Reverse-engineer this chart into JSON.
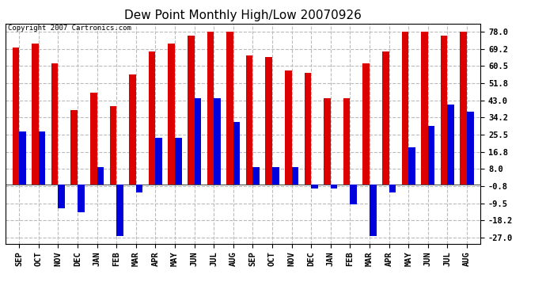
{
  "title": "Dew Point Monthly High/Low 20070926",
  "copyright": "Copyright 2007 Cartronics.com",
  "months": [
    "SEP",
    "OCT",
    "NOV",
    "DEC",
    "JAN",
    "FEB",
    "MAR",
    "APR",
    "MAY",
    "JUN",
    "JUL",
    "AUG",
    "SEP",
    "OCT",
    "NOV",
    "DEC",
    "JAN",
    "FEB",
    "MAR",
    "APR",
    "MAY",
    "JUN",
    "JUL",
    "AUG"
  ],
  "highs": [
    70,
    72,
    62,
    38,
    47,
    40,
    56,
    68,
    72,
    76,
    78,
    78,
    66,
    65,
    58,
    57,
    44,
    44,
    62,
    68,
    78,
    78,
    76,
    78
  ],
  "lows": [
    27,
    27,
    -12,
    -14,
    9,
    -26,
    -4,
    24,
    24,
    44,
    44,
    32,
    9,
    9,
    9,
    -2,
    -2,
    -10,
    -26,
    -4,
    19,
    30,
    41,
    37
  ],
  "high_color": "#dd0000",
  "low_color": "#0000dd",
  "bg_color": "#ffffff",
  "grid_color": "#bbbbbb",
  "yticks": [
    78.0,
    69.2,
    60.5,
    51.8,
    43.0,
    34.2,
    25.5,
    16.8,
    8.0,
    -0.8,
    -9.5,
    -18.2,
    -27.0
  ],
  "ylim": [
    -30.0,
    82.0
  ],
  "bar_width": 0.35,
  "title_fontsize": 11,
  "tick_fontsize": 7.5,
  "copyright_fontsize": 6.5
}
